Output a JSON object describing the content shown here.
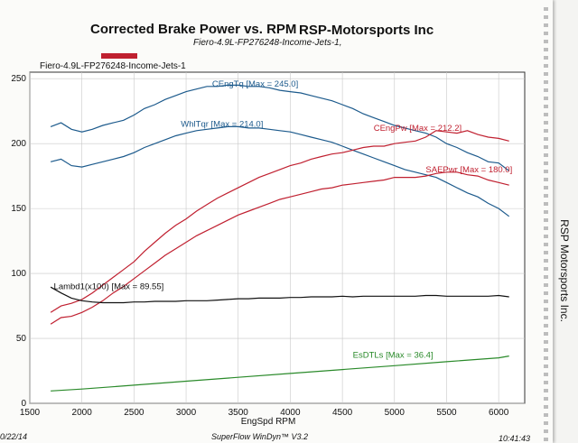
{
  "header": {
    "title_left": "Corrected Brake Power vs. RPM",
    "title_right": "RSP-Motorsports Inc",
    "subtitle": "Fiero-4.9L-FP276248-Income-Jets-1,",
    "file_label": "Fiero-4.9L-FP276248-Income-Jets-1",
    "legend_color": "#c02030"
  },
  "footer": {
    "date": "0/22/14",
    "software": "SuperFlow WinDyn™ V3.2",
    "time": "10:41:43"
  },
  "side_label": "RSP Motorsports Inc.",
  "chart_data": {
    "type": "line",
    "title": "Corrected Brake Power vs. RPM",
    "xlabel": "EngSpd RPM",
    "ylabel": "",
    "xlim": [
      1500,
      6250
    ],
    "ylim": [
      0,
      255
    ],
    "xticks": [
      1500,
      2000,
      2500,
      3000,
      3500,
      4000,
      4500,
      5000,
      5500,
      6000
    ],
    "yticks": [
      0,
      50,
      100,
      150,
      200,
      250
    ],
    "grid": true,
    "series": [
      {
        "name": "CEngTq",
        "color": "#1c5a8c",
        "label": "CEngTq [Max = 245.0]",
        "label_at": [
          3250,
          244
        ],
        "x": [
          1700,
          1800,
          1900,
          2000,
          2100,
          2200,
          2300,
          2400,
          2500,
          2600,
          2700,
          2800,
          2900,
          3000,
          3100,
          3200,
          3300,
          3400,
          3500,
          3600,
          3700,
          3800,
          3900,
          4000,
          4100,
          4200,
          4300,
          4400,
          4500,
          4600,
          4700,
          4800,
          4900,
          5000,
          5100,
          5200,
          5300,
          5400,
          5500,
          5600,
          5700,
          5800,
          5900,
          6000,
          6100
        ],
        "values": [
          213,
          216,
          211,
          209,
          211,
          214,
          216,
          218,
          222,
          227,
          230,
          234,
          237,
          240,
          242,
          244,
          244,
          245,
          245,
          244,
          244,
          243,
          241,
          240,
          239,
          237,
          235,
          233,
          230,
          227,
          223,
          220,
          217,
          214,
          212,
          210,
          208,
          205,
          200,
          197,
          193,
          190,
          186,
          185,
          179
        ]
      },
      {
        "name": "WhlTqr",
        "color": "#1c5a8c",
        "label": "WhlTqr [Max = 214.0]",
        "label_at": [
          2950,
          213
        ],
        "x": [
          1700,
          1800,
          1900,
          2000,
          2100,
          2200,
          2300,
          2400,
          2500,
          2600,
          2700,
          2800,
          2900,
          3000,
          3100,
          3200,
          3300,
          3400,
          3500,
          3600,
          3700,
          3800,
          3900,
          4000,
          4100,
          4200,
          4300,
          4400,
          4500,
          4600,
          4700,
          4800,
          4900,
          5000,
          5100,
          5200,
          5300,
          5400,
          5500,
          5600,
          5700,
          5800,
          5900,
          6000,
          6100
        ],
        "values": [
          186,
          188,
          183,
          182,
          184,
          186,
          188,
          190,
          193,
          197,
          200,
          203,
          206,
          208,
          210,
          211,
          212,
          213,
          213,
          212,
          212,
          211,
          210,
          209,
          207,
          205,
          203,
          201,
          198,
          195,
          192,
          189,
          186,
          183,
          180,
          178,
          176,
          174,
          170,
          166,
          162,
          159,
          154,
          150,
          144
        ]
      },
      {
        "name": "CEngPw",
        "color": "#c02030",
        "label": "CEngPw [Max = 212.2]",
        "label_at": [
          4800,
          210
        ],
        "x": [
          1700,
          1800,
          1900,
          2000,
          2100,
          2200,
          2300,
          2400,
          2500,
          2600,
          2700,
          2800,
          2900,
          3000,
          3100,
          3200,
          3300,
          3400,
          3500,
          3600,
          3700,
          3800,
          3900,
          4000,
          4100,
          4200,
          4300,
          4400,
          4500,
          4600,
          4700,
          4800,
          4900,
          5000,
          5100,
          5200,
          5300,
          5400,
          5500,
          5600,
          5700,
          5800,
          5900,
          6000,
          6100
        ],
        "values": [
          70,
          75,
          77,
          80,
          85,
          91,
          97,
          103,
          109,
          117,
          124,
          131,
          137,
          142,
          148,
          153,
          158,
          162,
          166,
          170,
          174,
          177,
          180,
          183,
          185,
          188,
          190,
          192,
          193,
          195,
          197,
          198,
          198,
          200,
          201,
          202,
          205,
          210,
          209,
          208,
          210,
          207,
          205,
          204,
          202
        ]
      },
      {
        "name": "SAEPwr",
        "color": "#c02030",
        "label": "SAEPwr [Max = 180.0]",
        "label_at": [
          5300,
          178
        ],
        "x": [
          1700,
          1800,
          1900,
          2000,
          2100,
          2200,
          2300,
          2400,
          2500,
          2600,
          2700,
          2800,
          2900,
          3000,
          3100,
          3200,
          3300,
          3400,
          3500,
          3600,
          3700,
          3800,
          3900,
          4000,
          4100,
          4200,
          4300,
          4400,
          4500,
          4600,
          4700,
          4800,
          4900,
          5000,
          5100,
          5200,
          5300,
          5400,
          5500,
          5600,
          5700,
          5800,
          5900,
          6000,
          6100
        ],
        "values": [
          61,
          66,
          67,
          70,
          74,
          79,
          85,
          90,
          96,
          102,
          108,
          114,
          119,
          124,
          129,
          133,
          137,
          141,
          145,
          148,
          151,
          154,
          157,
          159,
          161,
          163,
          165,
          166,
          168,
          169,
          170,
          171,
          172,
          174,
          174,
          174,
          175,
          177,
          178,
          178,
          176,
          175,
          172,
          170,
          168
        ]
      },
      {
        "name": "Lambd1(x100)",
        "color": "#111111",
        "label": "Lambd1(x100) [Max = 89.55]",
        "label_at": [
          1730,
          88
        ],
        "x": [
          1700,
          1800,
          1900,
          2000,
          2100,
          2200,
          2300,
          2400,
          2500,
          2600,
          2700,
          2800,
          2900,
          3000,
          3100,
          3200,
          3300,
          3400,
          3500,
          3600,
          3700,
          3800,
          3900,
          4000,
          4100,
          4200,
          4300,
          4400,
          4500,
          4600,
          4700,
          4800,
          4900,
          5000,
          5100,
          5200,
          5300,
          5400,
          5500,
          5600,
          5700,
          5800,
          5900,
          6000,
          6100
        ],
        "values": [
          89.5,
          85,
          81,
          79,
          78,
          77.5,
          77.5,
          77.5,
          78,
          78,
          78.5,
          78.5,
          78.5,
          79,
          79,
          79,
          79.5,
          80,
          80.5,
          80.5,
          81,
          81,
          81,
          81.5,
          81.5,
          82,
          82,
          82,
          82.5,
          82,
          82.5,
          82.5,
          82.5,
          82.5,
          82.5,
          82.5,
          83,
          83,
          82.5,
          82.5,
          82.5,
          82.5,
          82.5,
          83,
          82
        ]
      },
      {
        "name": "EsDTLs",
        "color": "#2a8a2a",
        "label": "EsDTLs [Max = 36.4]",
        "label_at": [
          4600,
          35
        ],
        "x": [
          1700,
          2000,
          2500,
          3000,
          3500,
          4000,
          4500,
          5000,
          5500,
          6000,
          6100
        ],
        "values": [
          9.5,
          11,
          14,
          17,
          20,
          23,
          26,
          29,
          32,
          35,
          36.4
        ]
      }
    ]
  }
}
